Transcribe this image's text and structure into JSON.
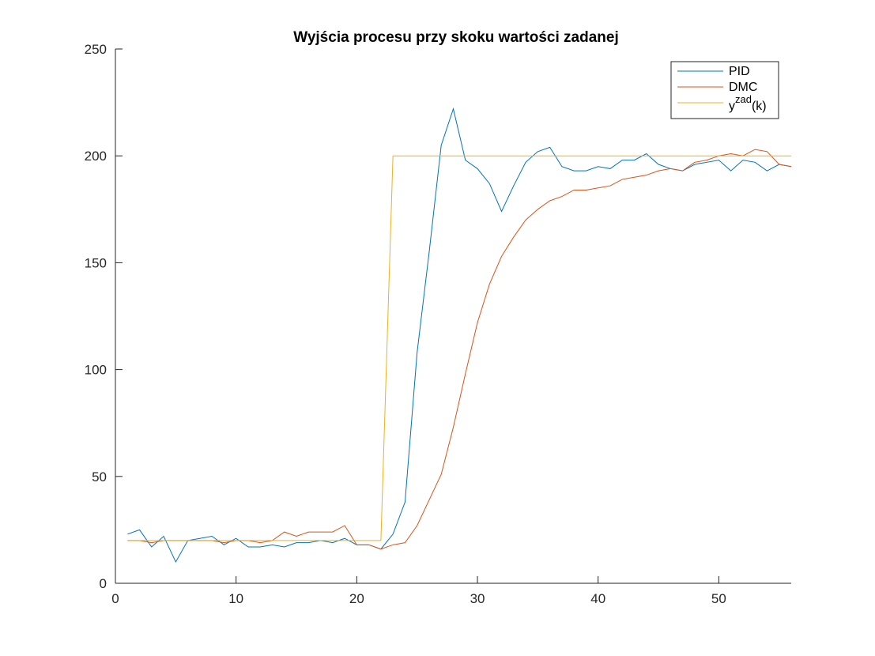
{
  "chart_data": {
    "type": "line",
    "title": "Wyjścia procesu przy skoku wartości zadanej",
    "xlabel": "",
    "ylabel": "",
    "xlim": [
      0,
      56
    ],
    "ylim": [
      0,
      250
    ],
    "xticks": [
      0,
      10,
      20,
      30,
      40,
      50
    ],
    "yticks": [
      0,
      50,
      100,
      150,
      200,
      250
    ],
    "grid": false,
    "legend_position": "top-right",
    "x": [
      1,
      2,
      3,
      4,
      5,
      6,
      7,
      8,
      9,
      10,
      11,
      12,
      13,
      14,
      15,
      16,
      17,
      18,
      19,
      20,
      21,
      22,
      23,
      24,
      25,
      26,
      27,
      28,
      29,
      30,
      31,
      32,
      33,
      34,
      35,
      36,
      37,
      38,
      39,
      40,
      41,
      42,
      43,
      44,
      45,
      46,
      47,
      48,
      49,
      50,
      51,
      52,
      53,
      54,
      55,
      56
    ],
    "series": [
      {
        "name": "PID",
        "color": "#0072BD",
        "values": [
          23,
          25,
          17,
          22,
          10,
          20,
          21,
          22,
          18,
          21,
          17,
          17,
          18,
          17,
          19,
          19,
          20,
          19,
          21,
          18,
          18,
          16,
          23,
          38,
          108,
          155,
          205,
          222,
          198,
          194,
          187,
          174,
          186,
          197,
          202,
          204,
          195,
          193,
          193,
          195,
          194,
          198,
          198,
          201,
          196,
          194,
          193,
          196,
          197,
          198,
          193,
          198,
          197,
          193,
          196,
          195
        ]
      },
      {
        "name": "DMC",
        "color": "#D95319",
        "values": [
          20,
          20,
          19,
          20,
          20,
          20,
          20,
          20,
          19,
          20,
          20,
          19,
          20,
          24,
          22,
          24,
          24,
          24,
          27,
          18,
          18,
          16,
          18,
          19,
          27,
          39,
          51,
          73,
          98,
          122,
          140,
          153,
          162,
          170,
          175,
          179,
          181,
          184,
          184,
          185,
          186,
          189,
          190,
          191,
          193,
          194,
          193,
          197,
          198,
          200,
          201,
          200,
          203,
          202,
          196,
          195
        ]
      },
      {
        "name": "y^zad(k)",
        "legend_base": "y",
        "legend_sup": "zad",
        "legend_tail": "(k)",
        "color": "#EDB120",
        "values": [
          20,
          20,
          20,
          20,
          20,
          20,
          20,
          20,
          20,
          20,
          20,
          20,
          20,
          20,
          20,
          20,
          20,
          20,
          20,
          20,
          20,
          20,
          200,
          200,
          200,
          200,
          200,
          200,
          200,
          200,
          200,
          200,
          200,
          200,
          200,
          200,
          200,
          200,
          200,
          200,
          200,
          200,
          200,
          200,
          200,
          200,
          200,
          200,
          200,
          200,
          200,
          200,
          200,
          200,
          200,
          200
        ]
      }
    ]
  }
}
